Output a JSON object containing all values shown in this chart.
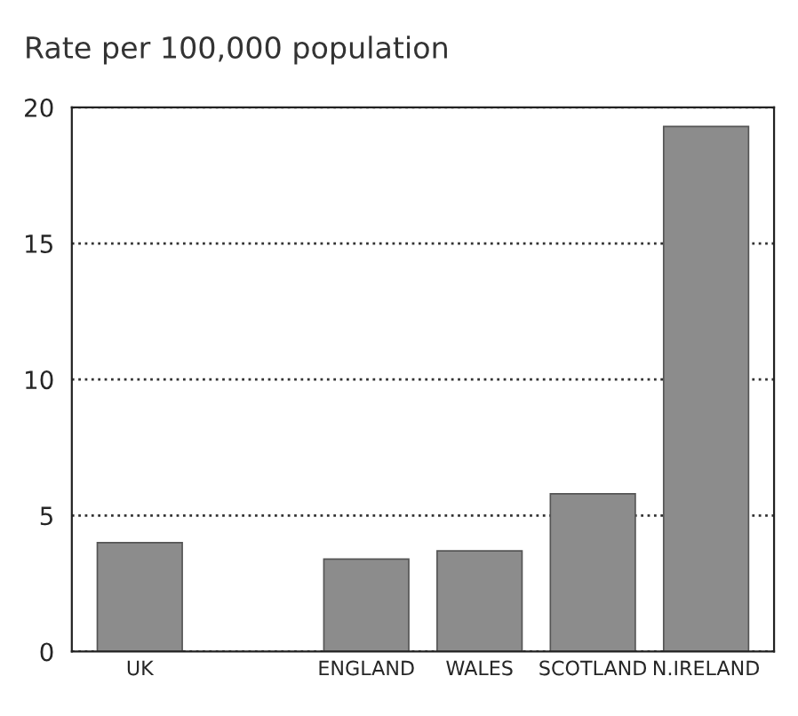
{
  "chart_data": {
    "type": "bar",
    "ylabel": "Rate per 100,000 population",
    "categories": [
      "UK",
      null,
      "ENGLAND",
      "WALES",
      "SCOTLAND",
      "N.IRELAND"
    ],
    "values": [
      4.0,
      null,
      3.4,
      3.7,
      5.8,
      19.3
    ],
    "color": "#8c8c8c",
    "ylim": [
      0,
      20
    ],
    "yticks": [
      0,
      5,
      10,
      15,
      20
    ],
    "grid": "y",
    "legend": false
  }
}
